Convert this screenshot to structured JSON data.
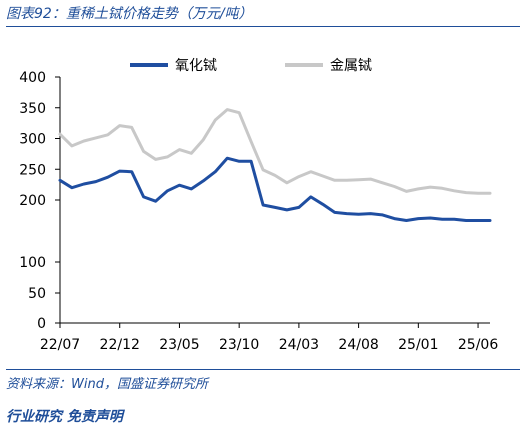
{
  "figure": {
    "title": "图表92：重稀土铽价格走势（万元/吨）",
    "source": "资料来源：Wind，国盛证券研究所",
    "footer_partial": "行业研究 免责声明"
  },
  "colors": {
    "brand_blue": "#1f4e99",
    "series_oxide": "#1f4ea1",
    "series_metal": "#c8c8c8"
  },
  "chart_data": {
    "type": "line",
    "title": "",
    "xlabel": "",
    "ylabel": "",
    "ylim": [
      0,
      400
    ],
    "y_scale": "broken (compressed 100-200 segment relative to rest)",
    "yticks": [
      0,
      50,
      100,
      200,
      250,
      300,
      350,
      400
    ],
    "ytick_labels": [
      "0",
      "50",
      "100",
      "200",
      "250",
      "300",
      "350",
      "400"
    ],
    "xtick_labels": [
      "22/07",
      "22/12",
      "23/05",
      "23/10",
      "24/03",
      "24/08",
      "25/01",
      "25/06"
    ],
    "grid": false,
    "legend_position": "top",
    "series": [
      {
        "name": "氧化铽",
        "points": [
          [
            "22/07",
            232
          ],
          [
            "22/08",
            220
          ],
          [
            "22/09",
            226
          ],
          [
            "22/10",
            230
          ],
          [
            "22/11",
            237
          ],
          [
            "22/12",
            247
          ],
          [
            "23/01",
            246
          ],
          [
            "23/02",
            205
          ],
          [
            "23/03",
            198
          ],
          [
            "23/04",
            215
          ],
          [
            "23/05",
            224
          ],
          [
            "23/06",
            218
          ],
          [
            "23/07",
            231
          ],
          [
            "23/08",
            246
          ],
          [
            "23/09",
            268
          ],
          [
            "23/10",
            263
          ],
          [
            "23/11",
            263
          ],
          [
            "23/12",
            192
          ],
          [
            "24/01",
            188
          ],
          [
            "24/02",
            184
          ],
          [
            "24/03",
            188
          ],
          [
            "24/04",
            205
          ],
          [
            "24/05",
            193
          ],
          [
            "24/06",
            180
          ],
          [
            "24/07",
            178
          ],
          [
            "24/08",
            177
          ],
          [
            "24/09",
            178
          ],
          [
            "24/10",
            176
          ],
          [
            "24/11",
            170
          ],
          [
            "24/12",
            167
          ],
          [
            "25/01",
            170
          ],
          [
            "25/02",
            171
          ],
          [
            "25/03",
            169
          ],
          [
            "25/04",
            169
          ],
          [
            "25/05",
            167
          ],
          [
            "25/06",
            167
          ],
          [
            "25/07",
            167
          ]
        ]
      },
      {
        "name": "金属铽",
        "points": [
          [
            "22/07",
            307
          ],
          [
            "22/08",
            288
          ],
          [
            "22/09",
            296
          ],
          [
            "22/10",
            301
          ],
          [
            "22/11",
            306
          ],
          [
            "22/12",
            321
          ],
          [
            "23/01",
            318
          ],
          [
            "23/02",
            279
          ],
          [
            "23/03",
            266
          ],
          [
            "23/04",
            270
          ],
          [
            "23/05",
            282
          ],
          [
            "23/06",
            276
          ],
          [
            "23/07",
            298
          ],
          [
            "23/08",
            330
          ],
          [
            "23/09",
            347
          ],
          [
            "23/10",
            342
          ],
          [
            "23/11",
            295
          ],
          [
            "23/12",
            249
          ],
          [
            "24/01",
            240
          ],
          [
            "24/02",
            228
          ],
          [
            "24/03",
            238
          ],
          [
            "24/04",
            246
          ],
          [
            "24/05",
            239
          ],
          [
            "24/06",
            232
          ],
          [
            "24/07",
            232
          ],
          [
            "24/08",
            233
          ],
          [
            "24/09",
            234
          ],
          [
            "24/10",
            228
          ],
          [
            "24/11",
            222
          ],
          [
            "24/12",
            214
          ],
          [
            "25/01",
            218
          ],
          [
            "25/02",
            221
          ],
          [
            "25/03",
            219
          ],
          [
            "25/04",
            215
          ],
          [
            "25/05",
            212
          ],
          [
            "25/06",
            211
          ],
          [
            "25/07",
            211
          ]
        ]
      }
    ]
  }
}
